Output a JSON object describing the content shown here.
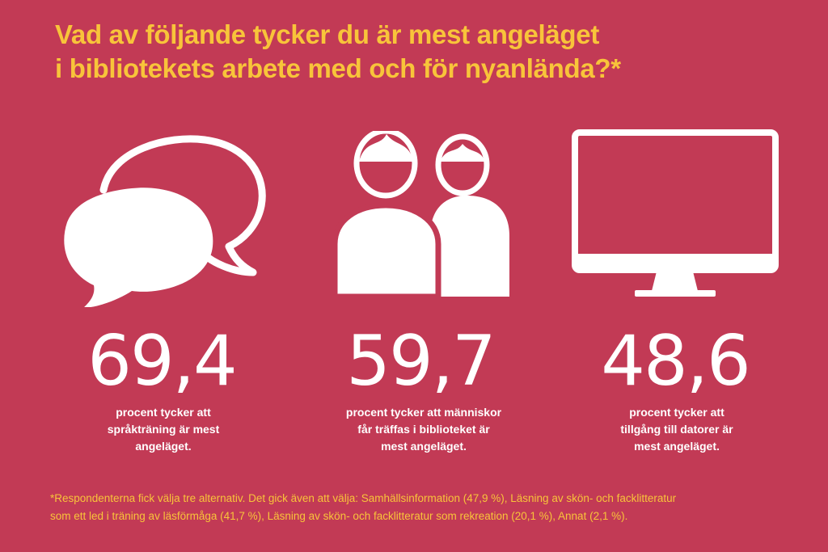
{
  "title": {
    "line1": "Vad av följande tycker du är mest angeläget",
    "line2": "i bibliotekets arbete med och för nyanlända?*"
  },
  "stats": [
    {
      "icon": "speech-bubbles-icon",
      "value": "69,4",
      "desc_line1": "procent tycker att",
      "desc_line2": "språkträning är mest",
      "desc_line3": "angeläget."
    },
    {
      "icon": "people-icon",
      "value": "59,7",
      "desc_line1": "procent tycker att människor",
      "desc_line2": "får träffas i biblioteket  är",
      "desc_line3": "mest angeläget."
    },
    {
      "icon": "computer-monitor-icon",
      "value": "48,6",
      "desc_line1": "procent tycker att",
      "desc_line2": "tillgång till datorer är",
      "desc_line3": "mest angeläget."
    }
  ],
  "footnote": {
    "line1": "*Respondenterna fick välja tre alternativ. Det gick även att välja: Samhällsinformation (47,9 %), Läsning av skön- och facklitteratur",
    "line2": "som ett led i träning av läsförmåga (41,7 %), Läsning av skön- och facklitteratur som rekreation (20,1 %), Annat (2,1 %)."
  },
  "colors": {
    "background": "#c23a55",
    "accent": "#f8c43a",
    "foreground": "#ffffff"
  }
}
